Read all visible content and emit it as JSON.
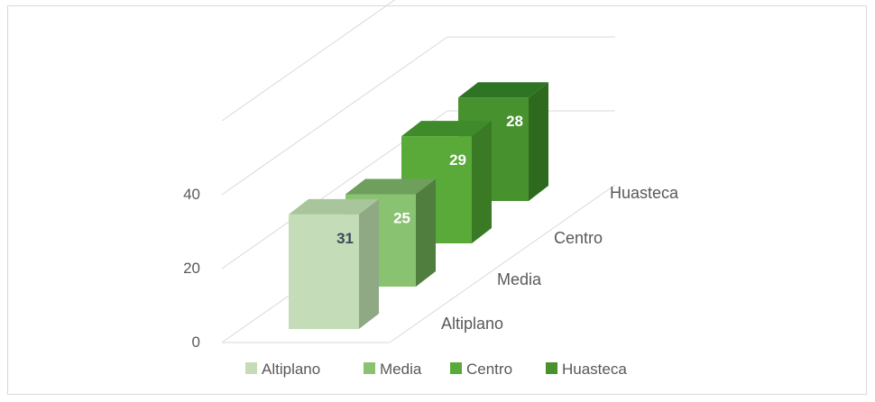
{
  "chart_data": {
    "type": "bar",
    "style": "3d-column",
    "categories": [
      "Altiplano",
      "Media",
      "Centro",
      "Huasteca"
    ],
    "values": [
      31,
      25,
      29,
      28
    ],
    "y_ticks": [
      "0",
      "20",
      "40"
    ],
    "ylim": [
      0,
      60
    ],
    "legend": {
      "position": "bottom",
      "entries": [
        "Altiplano",
        "Media",
        "Centro",
        "Huasteca"
      ]
    },
    "grid": true,
    "colors": {
      "Altiplano": {
        "front": "#c4dcb8",
        "side": "#8fa985",
        "top": "#a9c59c"
      },
      "Media": {
        "front": "#89c270",
        "side": "#4f7e3e",
        "top": "#6e9f5d"
      },
      "Centro": {
        "front": "#5aaa3a",
        "side": "#3a7a24",
        "top": "#3f8a2a"
      },
      "Huasteca": {
        "front": "#47922f",
        "side": "#2e6a1e",
        "top": "#2f7424"
      }
    },
    "label_colors": [
      "#3b4a5a",
      "#ffffff",
      "#ffffff",
      "#ffffff"
    ]
  }
}
